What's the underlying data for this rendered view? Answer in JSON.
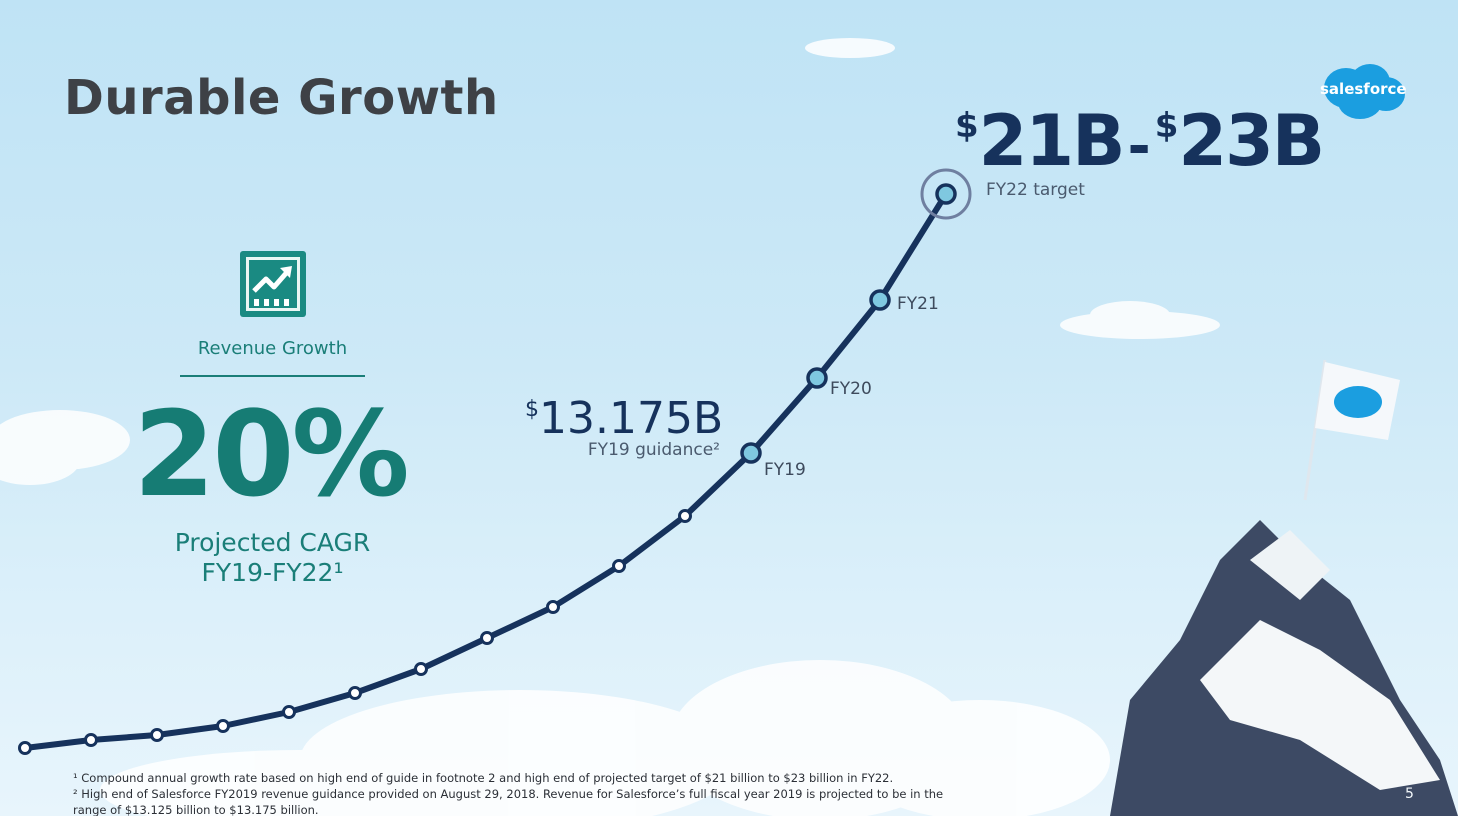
{
  "slide": {
    "title": "Durable Growth",
    "page_number": "5",
    "logo": {
      "text": "salesforce",
      "color": "#1b9ee0"
    }
  },
  "target": {
    "currency": "$",
    "low": "21B",
    "dash": "-",
    "high": "23B",
    "label": "FY22 target"
  },
  "metric": {
    "icon": "growth-chart-icon",
    "label": "Revenue Growth",
    "value": "20%",
    "caption_line1": "Projected CAGR",
    "caption_line2": "FY19-FY22¹"
  },
  "guidance": {
    "currency": "$",
    "value": "13.175B",
    "label": "FY19 guidance²"
  },
  "curve_labels": [
    "FY19",
    "FY20",
    "FY21"
  ],
  "footnotes": [
    "¹ Compound annual growth rate based on high end of guide in footnote 2 and high end of projected target of $21 billion to $23 billion in FY22.",
    "² High end of Salesforce FY2019 revenue guidance provided on August 29, 2018. Revenue for Salesforce’s full fiscal year 2019 is projected to be in the range of $13.125 billion to $13.175 billion."
  ],
  "colors": {
    "line": "#16325c",
    "accent": "#167c74",
    "highlight_dot": "#7fc8e0"
  }
}
